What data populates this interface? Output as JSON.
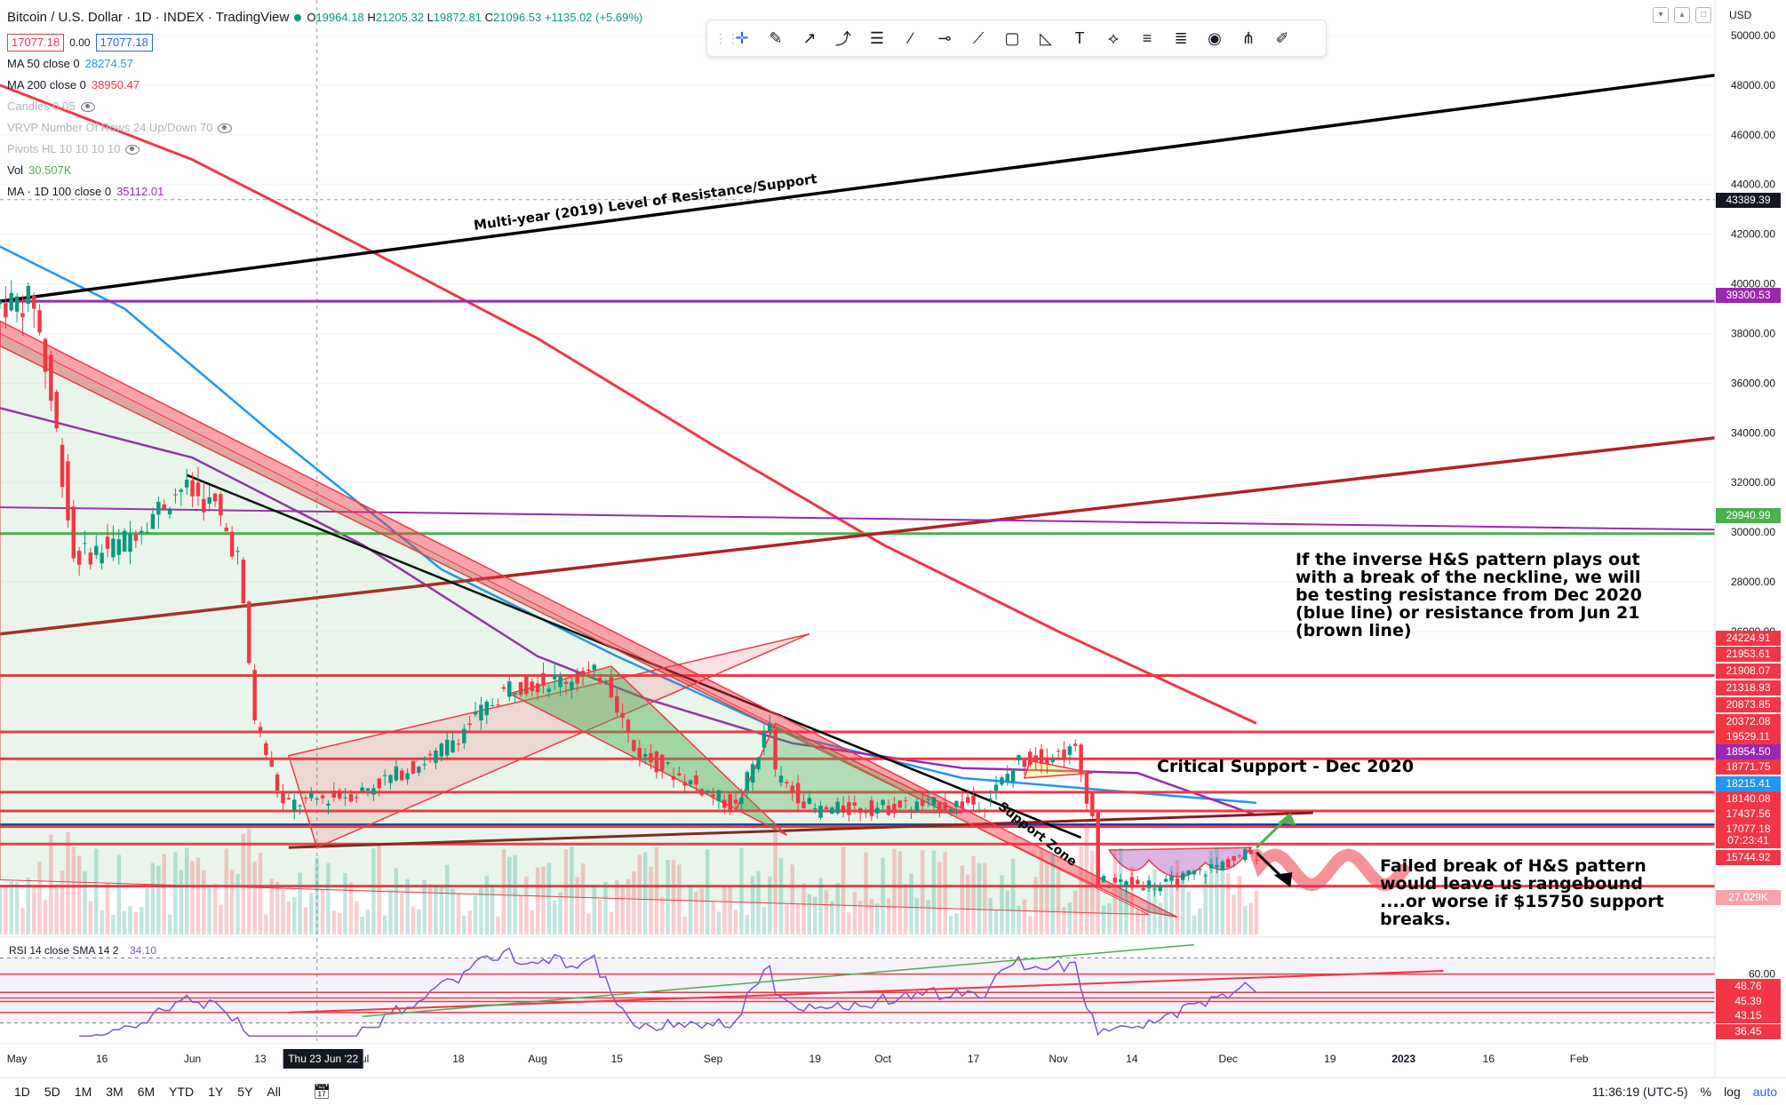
{
  "header": {
    "title": "Bitcoin / U.S. Dollar · 1D · INDEX · TradingView",
    "ohlc": {
      "o": "19964.18",
      "h": "21205.32",
      "l": "19872.81",
      "c": "21096.53",
      "chg": "+1135.02 (+5.69%)"
    },
    "sell_price": "17077.18",
    "spread": "0.00",
    "buy_price": "17077.18",
    "currency": "USD"
  },
  "indicators": [
    {
      "name": "MA 50 close 0",
      "value": "28274.57",
      "color": "#2196f3",
      "faded": false
    },
    {
      "name": "MA 200 close 0",
      "value": "38950.47",
      "color": "#f23645",
      "faded": false
    },
    {
      "name": "Candles 0.05",
      "value": "",
      "color": "#b2b5be",
      "faded": true
    },
    {
      "name": "VRVP Number Of Rows 24 Up/Down 70",
      "value": "",
      "color": "#b2b5be",
      "faded": true
    },
    {
      "name": "Pivots HL 10 10 10 10",
      "value": "",
      "color": "#b2b5be",
      "faded": true
    },
    {
      "name": "Vol",
      "value": "30.507K",
      "color": "#4caf50",
      "faded": false
    },
    {
      "name": "MA · 1D 100 close 0",
      "value": "35112.01",
      "color": "#9c27b0",
      "faded": false
    }
  ],
  "rsi": {
    "label": "RSI 14 close SMA 14 2",
    "value": "34.10"
  },
  "annotations": {
    "multi_year": "Multi-year (2019) Level of Resistance/Support",
    "support_zone": "Support Zone",
    "critical_support": "Critical Support - Dec 2020",
    "hs_note": [
      "If the inverse H&S pattern plays out",
      "with a break of the neckline, we will",
      "be testing resistance from Dec 2020",
      "(blue line) or resistance from Jun 21",
      "(brown line)"
    ],
    "fail_note": [
      "Failed break of H&S pattern",
      "would leave us rangebound",
      "....or worse if $15750 support",
      "breaks."
    ]
  },
  "price_axis": {
    "ticks": [
      "50000.00",
      "48000.00",
      "46000.00",
      "44000.00",
      "42000.00",
      "40000.00",
      "38000.00",
      "36000.00",
      "34000.00",
      "32000.00",
      "30000.00",
      "28000.00",
      "26000.00"
    ],
    "crosshair": "43389.39",
    "badges": [
      {
        "label": "39300.53",
        "color": "#9c27b0"
      },
      {
        "label": "29940.99",
        "color": "#4caf50"
      },
      {
        "label": "24224.91",
        "color": "#f23645"
      },
      {
        "label": "21953.61",
        "color": "#f23645"
      },
      {
        "label": "21908.07",
        "color": "#f23645"
      },
      {
        "label": "21318.93",
        "color": "#f23645"
      },
      {
        "label": "20873.85",
        "color": "#f23645"
      },
      {
        "label": "20372.08",
        "color": "#f23645"
      },
      {
        "label": "19529.11",
        "color": "#f23645"
      },
      {
        "label": "18954.50",
        "color": "#9c27b0"
      },
      {
        "label": "18771.75",
        "color": "#f23645"
      },
      {
        "label": "18215.41",
        "color": "#2196f3"
      },
      {
        "label": "18140.08",
        "color": "#f23645"
      },
      {
        "label": "17437.56",
        "color": "#f23645"
      },
      {
        "label": "17077.18",
        "color": "#f23645"
      },
      {
        "label": "07:23:41",
        "color": "#f23645"
      },
      {
        "label": "15744.92",
        "color": "#f23645"
      },
      {
        "label": "27.029K",
        "color": "#f7a1a8"
      }
    ],
    "rsi_ticks": [
      "60.00"
    ],
    "rsi_badges": [
      {
        "label": "48.76",
        "color": "#f23645"
      },
      {
        "label": "45.39",
        "color": "#f23645"
      },
      {
        "label": "43.15",
        "color": "#f23645"
      },
      {
        "label": "36.45",
        "color": "#f23645"
      }
    ]
  },
  "time_axis": {
    "labels": [
      "May",
      "16",
      "Jun",
      "13",
      "Jul",
      "18",
      "Aug",
      "15",
      "Sep",
      "19",
      "Oct",
      "17",
      "Nov",
      "14",
      "Dec",
      "19",
      "2023",
      "16",
      "Feb"
    ],
    "crosshair": "Thu 23 Jun '22"
  },
  "bottom": {
    "timeframes": [
      "1D",
      "5D",
      "1M",
      "3M",
      "6M",
      "YTD",
      "1Y",
      "5Y",
      "All"
    ],
    "clock": "11:36:19 (UTC-5)",
    "pct": "%",
    "log": "log",
    "auto": "auto"
  },
  "chart_data": {
    "type": "candlestick",
    "title": "Bitcoin / U.S. Dollar · 1D · INDEX",
    "ylabel": "USD",
    "y_range": [
      13800,
      51000
    ],
    "x_range": [
      "2022-04-28",
      "2023-02-25"
    ],
    "price_path": [
      {
        "date": "2022-04-28",
        "price": 39200
      },
      {
        "date": "2022-05-05",
        "price": 39300
      },
      {
        "date": "2022-05-09",
        "price": 34000
      },
      {
        "date": "2022-05-12",
        "price": 29000
      },
      {
        "date": "2022-05-20",
        "price": 29500
      },
      {
        "date": "2022-05-31",
        "price": 31800
      },
      {
        "date": "2022-06-06",
        "price": 31000
      },
      {
        "date": "2022-06-10",
        "price": 29000
      },
      {
        "date": "2022-06-13",
        "price": 22500
      },
      {
        "date": "2022-06-18",
        "price": 19000
      },
      {
        "date": "2022-07-01",
        "price": 19500
      },
      {
        "date": "2022-07-15",
        "price": 21000
      },
      {
        "date": "2022-07-28",
        "price": 23800
      },
      {
        "date": "2022-08-14",
        "price": 24300
      },
      {
        "date": "2022-08-19",
        "price": 21200
      },
      {
        "date": "2022-09-06",
        "price": 18900
      },
      {
        "date": "2022-09-12",
        "price": 22300
      },
      {
        "date": "2022-09-13",
        "price": 20200
      },
      {
        "date": "2022-09-20",
        "price": 18800
      },
      {
        "date": "2022-10-20",
        "price": 19100
      },
      {
        "date": "2022-10-26",
        "price": 20800
      },
      {
        "date": "2022-11-05",
        "price": 21200
      },
      {
        "date": "2022-11-08",
        "price": 18500
      },
      {
        "date": "2022-11-09",
        "price": 15900
      },
      {
        "date": "2022-11-21",
        "price": 15800
      },
      {
        "date": "2022-12-06",
        "price": 17077
      }
    ],
    "moving_averages": [
      {
        "name": "MA 50 close 0",
        "last": 28274.57
      },
      {
        "name": "MA 200 close 0",
        "last": 38950.47
      },
      {
        "name": "MA · 1D 100 close 0",
        "last": 35112.01
      }
    ],
    "horizontal_levels": [
      39300.53,
      29940.99,
      24224.91,
      21953.61,
      20873.85,
      19529.11,
      18771.75,
      18215.41,
      18140.08,
      17437.56,
      15744.92
    ],
    "volume_last": "30.507K",
    "rsi": {
      "period": 14,
      "last": 34.1,
      "levels": [
        60.0,
        48.76,
        45.39,
        43.15,
        36.45
      ]
    }
  }
}
